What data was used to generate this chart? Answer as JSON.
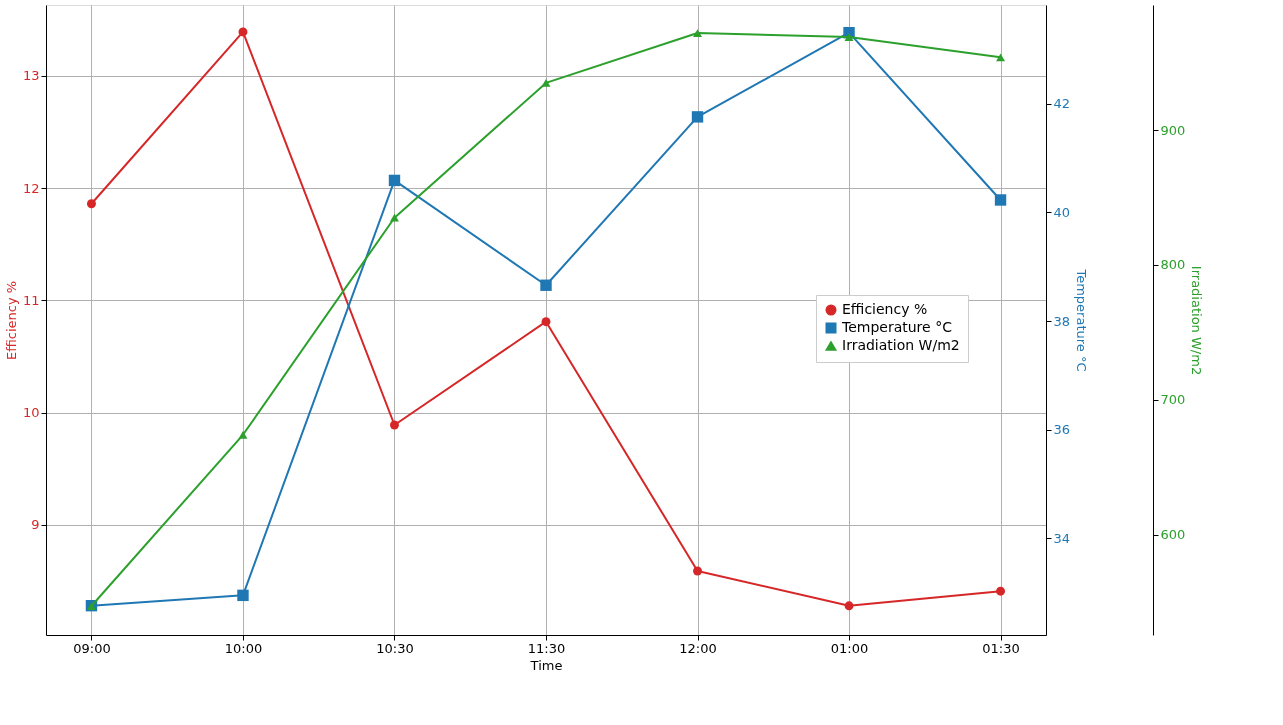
{
  "chart_data": {
    "type": "line",
    "xlabel": "Time",
    "ylabel": "Efficiency %",
    "y2label": "Temperature °C",
    "y3label": "Irradiation W/m2",
    "categories": [
      "09:00",
      "10:00",
      "10:30",
      "11:30",
      "12:00",
      "01:00",
      "01:30"
    ],
    "series": [
      {
        "name": "Efficiency %",
        "color": "#d62728",
        "marker": "circle",
        "axis": "y",
        "values": [
          11.86,
          13.39,
          9.89,
          10.81,
          8.59,
          8.28,
          8.41
        ]
      },
      {
        "name": "Temperature °C",
        "color": "#1f77b4",
        "marker": "square",
        "axis": "y2",
        "values": [
          32.76,
          32.95,
          40.59,
          38.66,
          41.76,
          43.31,
          40.23
        ]
      },
      {
        "name": "Irradiation W/m2",
        "color": "#2ca02c",
        "marker": "triangle",
        "axis": "y3",
        "values": [
          547,
          674,
          835,
          935,
          972,
          969,
          954
        ]
      }
    ],
    "ylim": [
      8.02,
      13.63
    ],
    "yticks": [
      9,
      10,
      11,
      12,
      13
    ],
    "y2lim": [
      32.22,
      43.82
    ],
    "y2ticks": [
      34,
      36,
      38,
      40,
      42
    ],
    "y3lim": [
      525.5,
      992.8
    ],
    "y3ticks": [
      600,
      700,
      800,
      900
    ],
    "grid": true,
    "legend": "right",
    "line_style": "solid"
  }
}
